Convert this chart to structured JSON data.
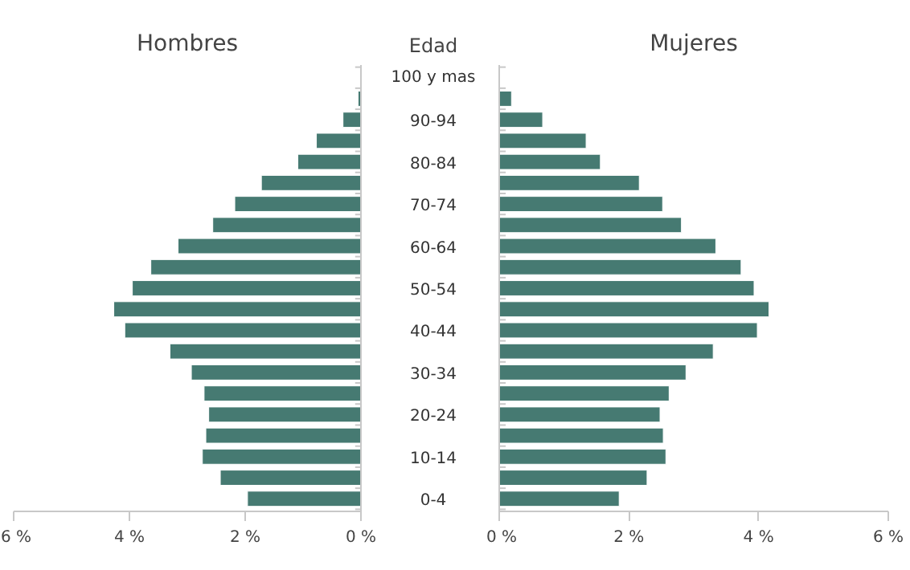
{
  "chart_data": [
    {
      "type": "bar",
      "orientation": "horizontal",
      "title": "Hombres",
      "ylabel": "Edad",
      "color": "#467a72",
      "categories": [
        "100 y mas",
        null,
        "90-94",
        null,
        "80-84",
        null,
        "70-74",
        null,
        "60-64",
        null,
        "50-54",
        null,
        "40-44",
        null,
        "30-34",
        null,
        "20-24",
        null,
        "10-14",
        null,
        "0-4"
      ],
      "values": [
        null,
        0.05,
        0.31,
        0.77,
        1.09,
        1.72,
        2.18,
        2.56,
        3.16,
        3.63,
        3.95,
        4.27,
        4.08,
        3.3,
        2.93,
        2.71,
        2.63,
        2.68,
        2.74,
        2.43,
        1.96
      ],
      "xlim": [
        6,
        0
      ],
      "xticks": [
        {
          "value": 6,
          "label": "6 %"
        },
        {
          "value": 4,
          "label": "4 %"
        },
        {
          "value": 2,
          "label": "2 %"
        },
        {
          "value": 0,
          "label": "0 %"
        }
      ]
    },
    {
      "type": "bar",
      "orientation": "horizontal",
      "title": "Mujeres",
      "color": "#467a72",
      "tick_labels": "x",
      "categories": [
        null,
        null,
        null,
        null,
        null,
        null,
        null,
        null,
        null,
        null,
        null,
        null,
        null,
        null,
        null,
        null,
        null,
        null,
        null,
        null,
        null
      ],
      "values": [
        null,
        0.19,
        0.67,
        1.34,
        1.56,
        2.16,
        2.52,
        2.81,
        3.34,
        3.73,
        3.93,
        4.16,
        3.98,
        3.3,
        2.88,
        2.62,
        2.48,
        2.53,
        2.57,
        2.28,
        1.85
      ],
      "xlim": [
        0,
        6
      ],
      "xticks": [
        {
          "value": 0,
          "label": "0 %"
        },
        {
          "value": 2,
          "label": "2 %"
        },
        {
          "value": 4,
          "label": "4 %"
        },
        {
          "value": 6,
          "label": "6 %"
        }
      ]
    }
  ]
}
